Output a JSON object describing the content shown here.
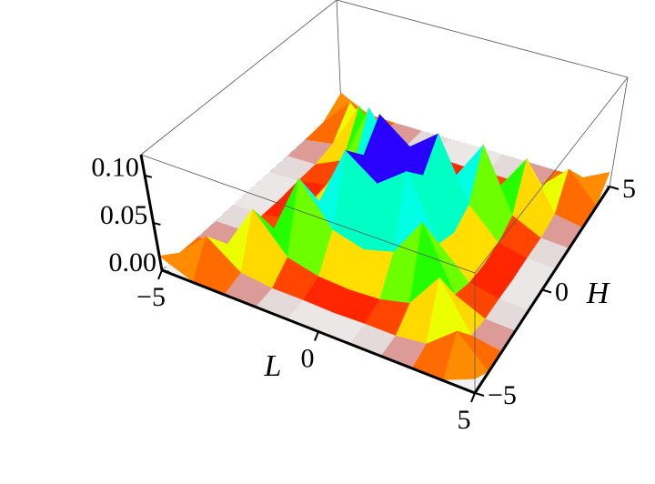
{
  "chart_data": {
    "type": "surface",
    "x_label": "L",
    "y_label": "H",
    "x": [
      -5,
      -4,
      -3,
      -2,
      -1,
      0,
      1,
      2,
      3,
      4,
      5
    ],
    "y": [
      -5,
      -4,
      -3,
      -2,
      -1,
      0,
      1,
      2,
      3,
      4,
      5
    ],
    "z": [
      [
        0.015,
        0.001,
        0,
        0,
        0,
        0,
        0,
        0,
        0,
        0.001,
        0.015
      ],
      [
        0.001,
        0.031,
        0.005,
        0.001,
        0.001,
        0,
        0.001,
        0.001,
        0.005,
        0.031,
        0.001
      ],
      [
        0,
        0.005,
        0.054,
        0.015,
        0.007,
        0.005,
        0.007,
        0.015,
        0.054,
        0.005,
        0
      ],
      [
        0,
        0.001,
        0.015,
        0.08,
        0.037,
        0.028,
        0.037,
        0.08,
        0.015,
        0.001,
        0
      ],
      [
        0,
        0.001,
        0.007,
        0.037,
        0.102,
        0.078,
        0.102,
        0.037,
        0.007,
        0.001,
        0
      ],
      [
        0,
        0,
        0.005,
        0.028,
        0.078,
        0.11,
        0.078,
        0.028,
        0.005,
        0,
        0
      ],
      [
        0,
        0.001,
        0.007,
        0.037,
        0.102,
        0.078,
        0.102,
        0.037,
        0.007,
        0.001,
        0
      ],
      [
        0,
        0.001,
        0.015,
        0.08,
        0.037,
        0.028,
        0.037,
        0.08,
        0.015,
        0.001,
        0
      ],
      [
        0,
        0.005,
        0.054,
        0.015,
        0.007,
        0.005,
        0.007,
        0.015,
        0.054,
        0.005,
        0
      ],
      [
        0.001,
        0.031,
        0.005,
        0.001,
        0.001,
        0,
        0.001,
        0.001,
        0.005,
        0.031,
        0.001
      ],
      [
        0.015,
        0.001,
        0,
        0,
        0,
        0,
        0,
        0,
        0,
        0.001,
        0.015
      ]
    ],
    "colormap": "rainbow",
    "xlim": [
      -5,
      5
    ],
    "ylim": [
      -5,
      5
    ],
    "zlim": [
      0,
      0.12
    ],
    "xticks": [
      {
        "value": -5,
        "label": "−5"
      },
      0,
      5
    ],
    "yticks": [
      {
        "value": -5,
        "label": "−5"
      },
      0,
      5
    ],
    "zticks": [
      {
        "value": 0,
        "label": "0.00"
      },
      {
        "value": 0.05,
        "label": "0.05"
      },
      {
        "value": 0.1,
        "label": "0.10"
      }
    ]
  }
}
